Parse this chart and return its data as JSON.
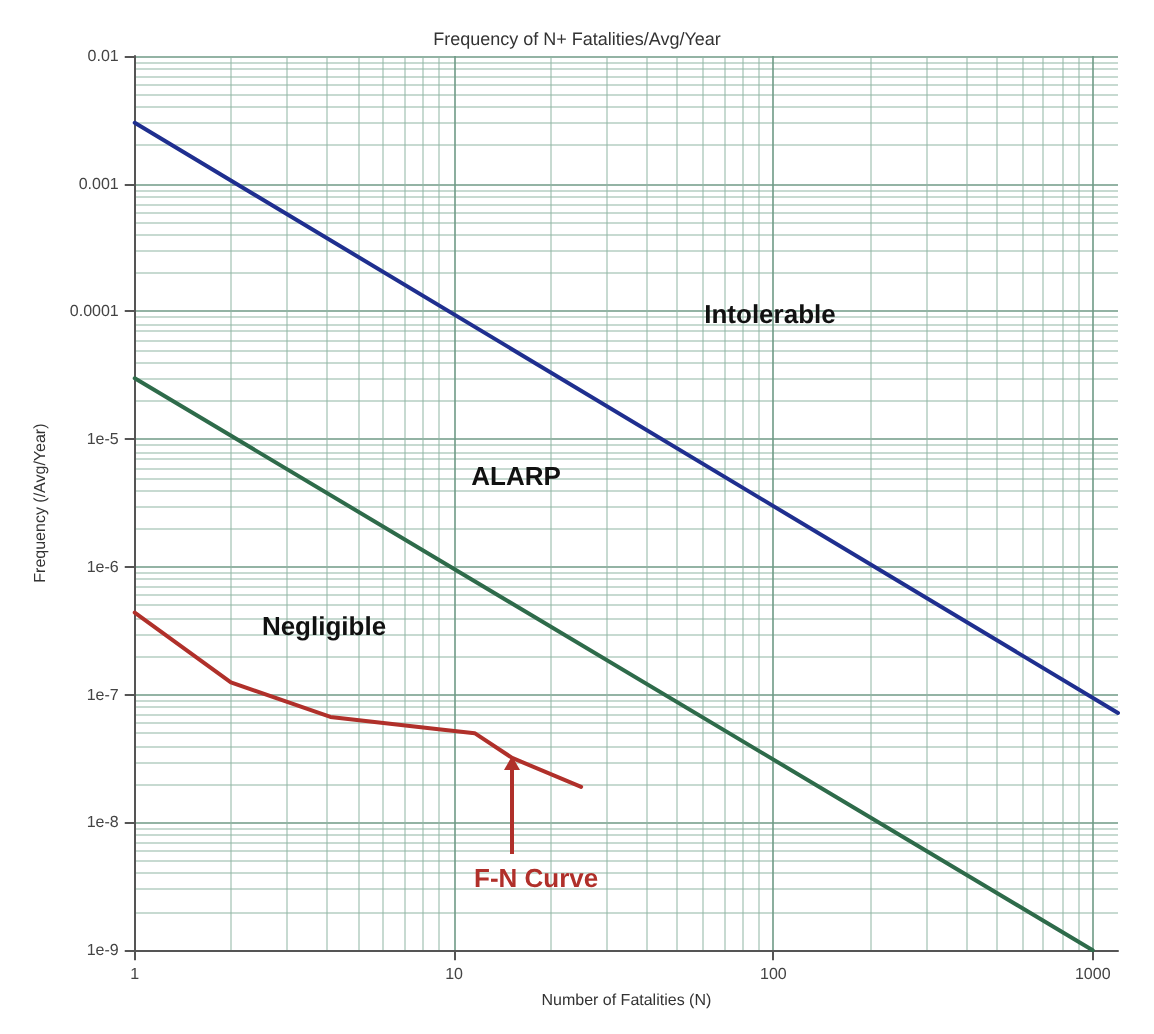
{
  "chart_data": {
    "type": "line",
    "title": "Frequency of N+ Fatalities/Avg/Year",
    "xlabel": "Number of Fatalities (N)",
    "ylabel": "Frequency (/Avg/Year)",
    "log": "xy",
    "grid": true,
    "marker": "none",
    "line_style": "solid",
    "xlim": [
      1,
      1200
    ],
    "xticks": [
      1,
      10,
      100,
      1000
    ],
    "ylim": [
      1e-09,
      0.01
    ],
    "yticks": [
      {
        "value": 0.01,
        "label": "0.01"
      },
      {
        "value": 0.001,
        "label": "0.001"
      },
      {
        "value": 0.0001,
        "label": "0.0001"
      },
      {
        "value": 1e-05,
        "label": "1e-5"
      },
      {
        "value": 1e-06,
        "label": "1e-6"
      },
      {
        "value": 1e-07,
        "label": "1e-7"
      },
      {
        "value": 1e-08,
        "label": "1e-8"
      },
      {
        "value": 1e-09,
        "label": "1e-9"
      }
    ],
    "series": [
      {
        "color": "#1f2f8f",
        "x": [
          1,
          1200
        ],
        "values": [
          0.003,
          7.2e-08
        ]
      },
      {
        "color": "#2e6b4a",
        "x": [
          1,
          1000
        ],
        "values": [
          3e-05,
          1e-09
        ]
      },
      {
        "color": "#b0302a",
        "x": [
          1,
          2,
          4.1,
          8.8,
          11.6,
          15.2,
          25
        ],
        "values": [
          4.4e-07,
          1.25e-07,
          6.7e-08,
          5.4e-08,
          5e-08,
          3.2e-08,
          1.9e-08
        ]
      }
    ],
    "annotations": [
      "Intolerable",
      "ALARP",
      "Negligible",
      {
        "text": "F-N Curve",
        "x": 15.2,
        "y": 3.2e-08
      }
    ]
  }
}
